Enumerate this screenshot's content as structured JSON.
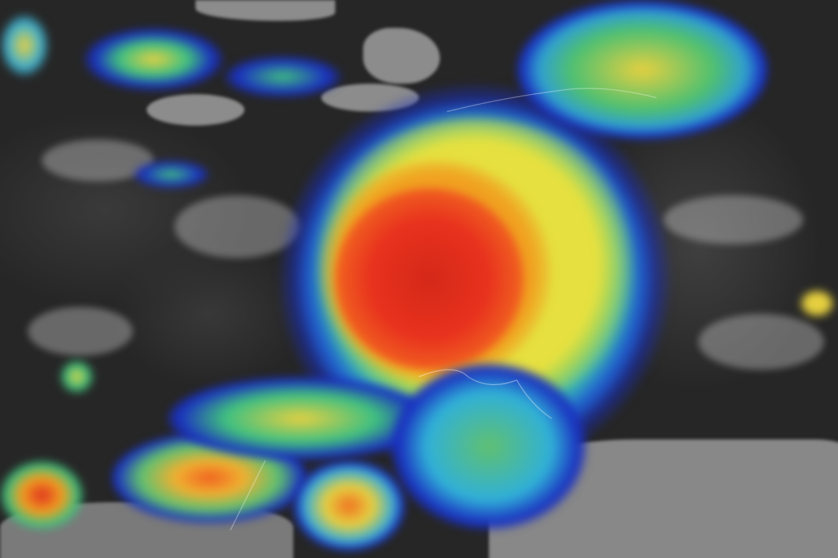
{
  "colors": {
    "ocean": "#262626",
    "land": "#8c8c8c",
    "storm_core": "#e8321e",
    "storm_mid": "#f0a020",
    "storm_outer": "#e6e040",
    "storm_edge_green": "#40c080",
    "storm_edge_cyan": "#30b0d8",
    "storm_edge_blue": "#1a30c0"
  }
}
